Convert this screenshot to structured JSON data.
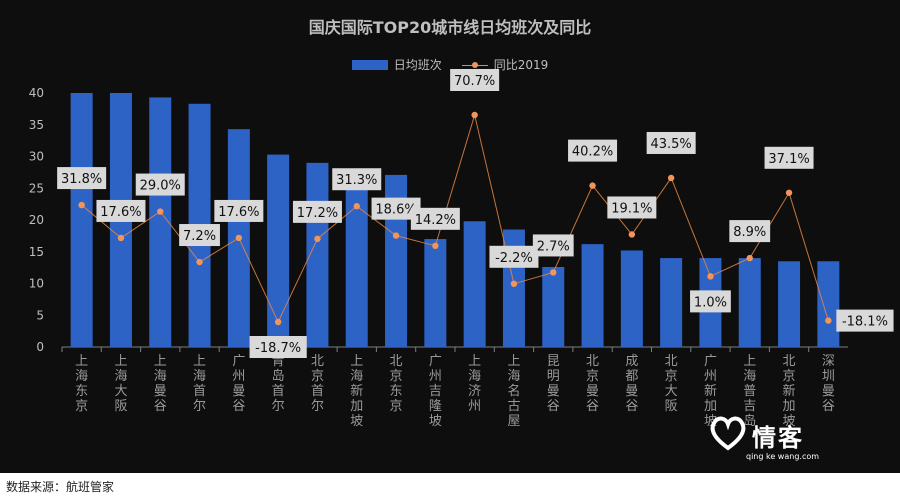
{
  "footer": {
    "source": "数据来源：航班管家"
  },
  "watermark": {
    "brand": "情客",
    "url": "qing ke wang.com"
  },
  "colors": {
    "background": "#0e0e0e",
    "bar": "#2e63c6",
    "line": "#e58643",
    "label_bg": "#d9d9d9"
  },
  "chart_data": {
    "type": "bar",
    "title": "国庆国际TOP20城市线日均班次及同比",
    "xlabel": "",
    "ylabel": "",
    "ylim": [
      0,
      40
    ],
    "yticks": [
      0,
      5,
      10,
      15,
      20,
      25,
      30,
      35,
      40
    ],
    "grid": false,
    "legend_position": "top-center",
    "categories": [
      [
        "上海",
        "东京"
      ],
      [
        "上海",
        "大阪"
      ],
      [
        "上海",
        "曼谷"
      ],
      [
        "上海",
        "首尔"
      ],
      [
        "广州",
        "曼谷"
      ],
      [
        "青岛",
        "首尔"
      ],
      [
        "北京",
        "首尔"
      ],
      [
        "上海",
        "新加坡"
      ],
      [
        "北京",
        "东京"
      ],
      [
        "广州",
        "吉隆坡"
      ],
      [
        "上海",
        "济州"
      ],
      [
        "上海",
        "名古屋"
      ],
      [
        "昆明",
        "曼谷"
      ],
      [
        "北京",
        "曼谷"
      ],
      [
        "成都",
        "曼谷"
      ],
      [
        "北京",
        "大阪"
      ],
      [
        "广州",
        "新加坡"
      ],
      [
        "上海",
        "普吉岛"
      ],
      [
        "北京",
        "新加坡"
      ],
      [
        "深圳",
        "曼谷"
      ]
    ],
    "series": [
      {
        "name": "日均班次",
        "type": "bar",
        "values": [
          40,
          40,
          39.3,
          38.3,
          34.3,
          30.3,
          29,
          28,
          27.1,
          17,
          19.8,
          18.5,
          12.6,
          16.2,
          15.2,
          14,
          14,
          14,
          13.5,
          13.5
        ]
      },
      {
        "name": "同比2019",
        "type": "line",
        "values": [
          31.8,
          17.6,
          29.0,
          7.2,
          17.6,
          -18.7,
          17.2,
          31.3,
          18.6,
          14.2,
          70.7,
          -2.2,
          2.7,
          40.2,
          19.1,
          43.5,
          1.0,
          8.9,
          37.1,
          -18.1
        ],
        "labels": [
          "31.8%",
          "17.6%",
          "29.0%",
          "7.2%",
          "17.6%",
          "-18.7%",
          "17.2%",
          "31.3%",
          "18.6%",
          "14.2%",
          "70.7%",
          "-2.2%",
          "2.7%",
          "40.2%",
          "19.1%",
          "43.5%",
          "1.0%",
          "8.9%",
          "37.1%",
          "-18.1%"
        ]
      }
    ]
  }
}
